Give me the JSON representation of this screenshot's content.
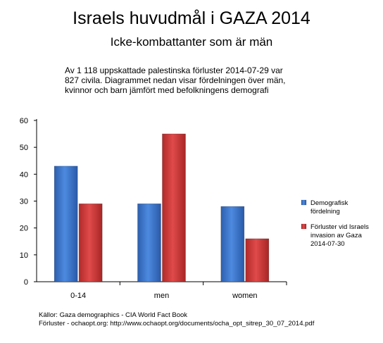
{
  "header": {
    "title": "Israels huvudmål i GAZA 2014",
    "subtitle": "Icke-kombattanter som är män",
    "description": "Av 1 118 uppskattade palestinska förluster 2014-07-29 var 827 civila. Diagrammet nedan visar fördelningen över män, kvinnor och barn jämfört med befolkningens demografi"
  },
  "sources": {
    "line1": "Källor: Gaza demographics - CIA World Fact Book",
    "line2": "Förluster - ochaopt.org: http://www.ochaopt.org/documents/ocha_opt_sitrep_30_07_2014.pdf"
  },
  "chart_data": {
    "type": "bar",
    "categories": [
      "0-14",
      "men",
      "women"
    ],
    "series": [
      {
        "name": "Demografisk fördelning",
        "legend_lines": [
          "Demografisk",
          "fördelning"
        ],
        "values": [
          43,
          29,
          28
        ],
        "color": "#3a73c9"
      },
      {
        "name": "Förluster vid Israels invasion av Gaza 2014-07-30",
        "legend_lines": [
          "Förluster vid Israels",
          "invasion av Gaza",
          "2014-07-30"
        ],
        "values": [
          29,
          55,
          16
        ],
        "color": "#cf3a3a"
      }
    ],
    "yticks": [
      "0",
      "10",
      "20",
      "30",
      "40",
      "50",
      "60"
    ],
    "ylim": [
      0,
      60
    ],
    "grid": false,
    "legend": "right"
  }
}
